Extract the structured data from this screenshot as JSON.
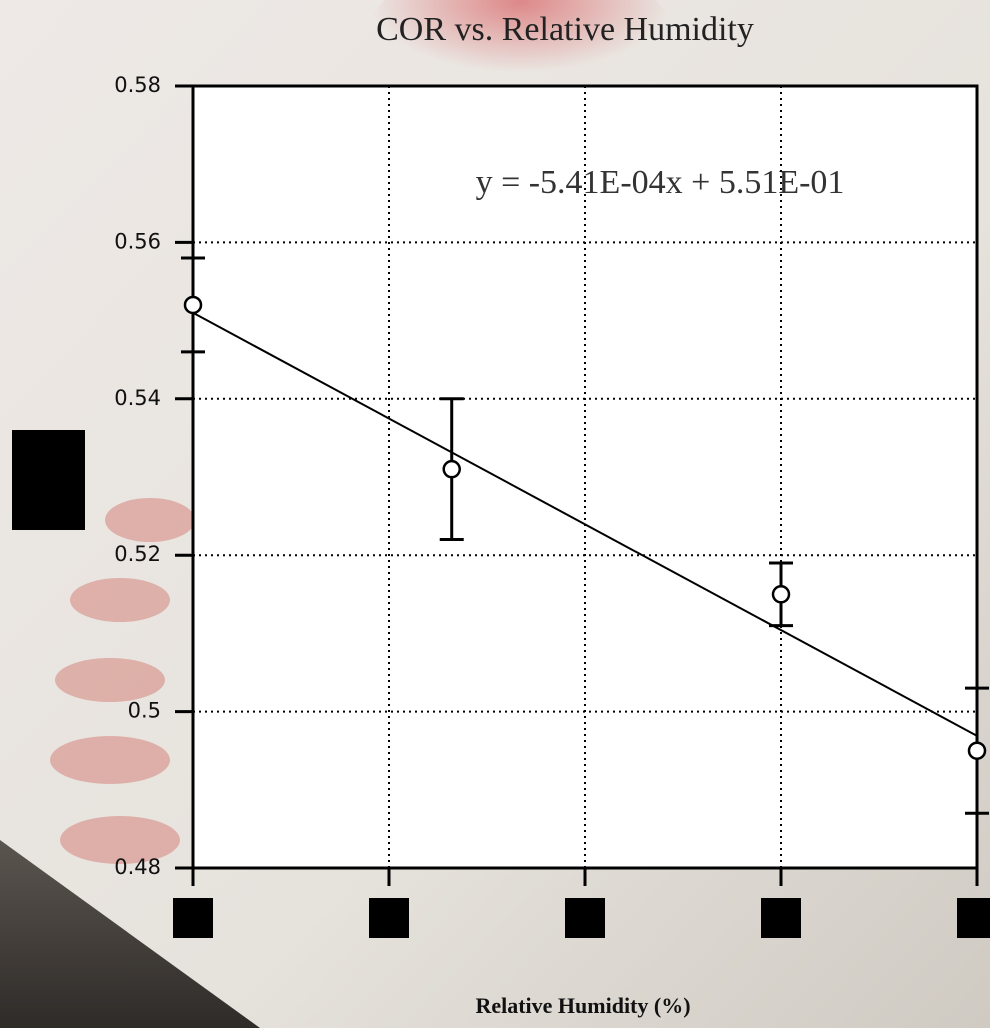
{
  "chart_data": {
    "type": "scatter",
    "title": "COR vs. Relative Humidity",
    "x_label": "Relative Humidity (%)",
    "x": [
      0,
      33,
      75,
      100
    ],
    "values": [
      0.552,
      0.531,
      0.515,
      0.495
    ],
    "errors": [
      0.006,
      0.009,
      0.004,
      0.008
    ],
    "color": "#000000",
    "xlim": [
      0,
      100
    ],
    "xticks": [
      0,
      25,
      50,
      75,
      100
    ],
    "ylim": [
      0.48,
      0.58
    ],
    "yticks": [
      0.48,
      0.5,
      0.52,
      0.54,
      0.56,
      0.58
    ],
    "grid": true,
    "trendline": {
      "label": "y =  -5.41E-04x + 5.51E-01",
      "slope": -0.000541,
      "intercept": 0.551
    }
  }
}
